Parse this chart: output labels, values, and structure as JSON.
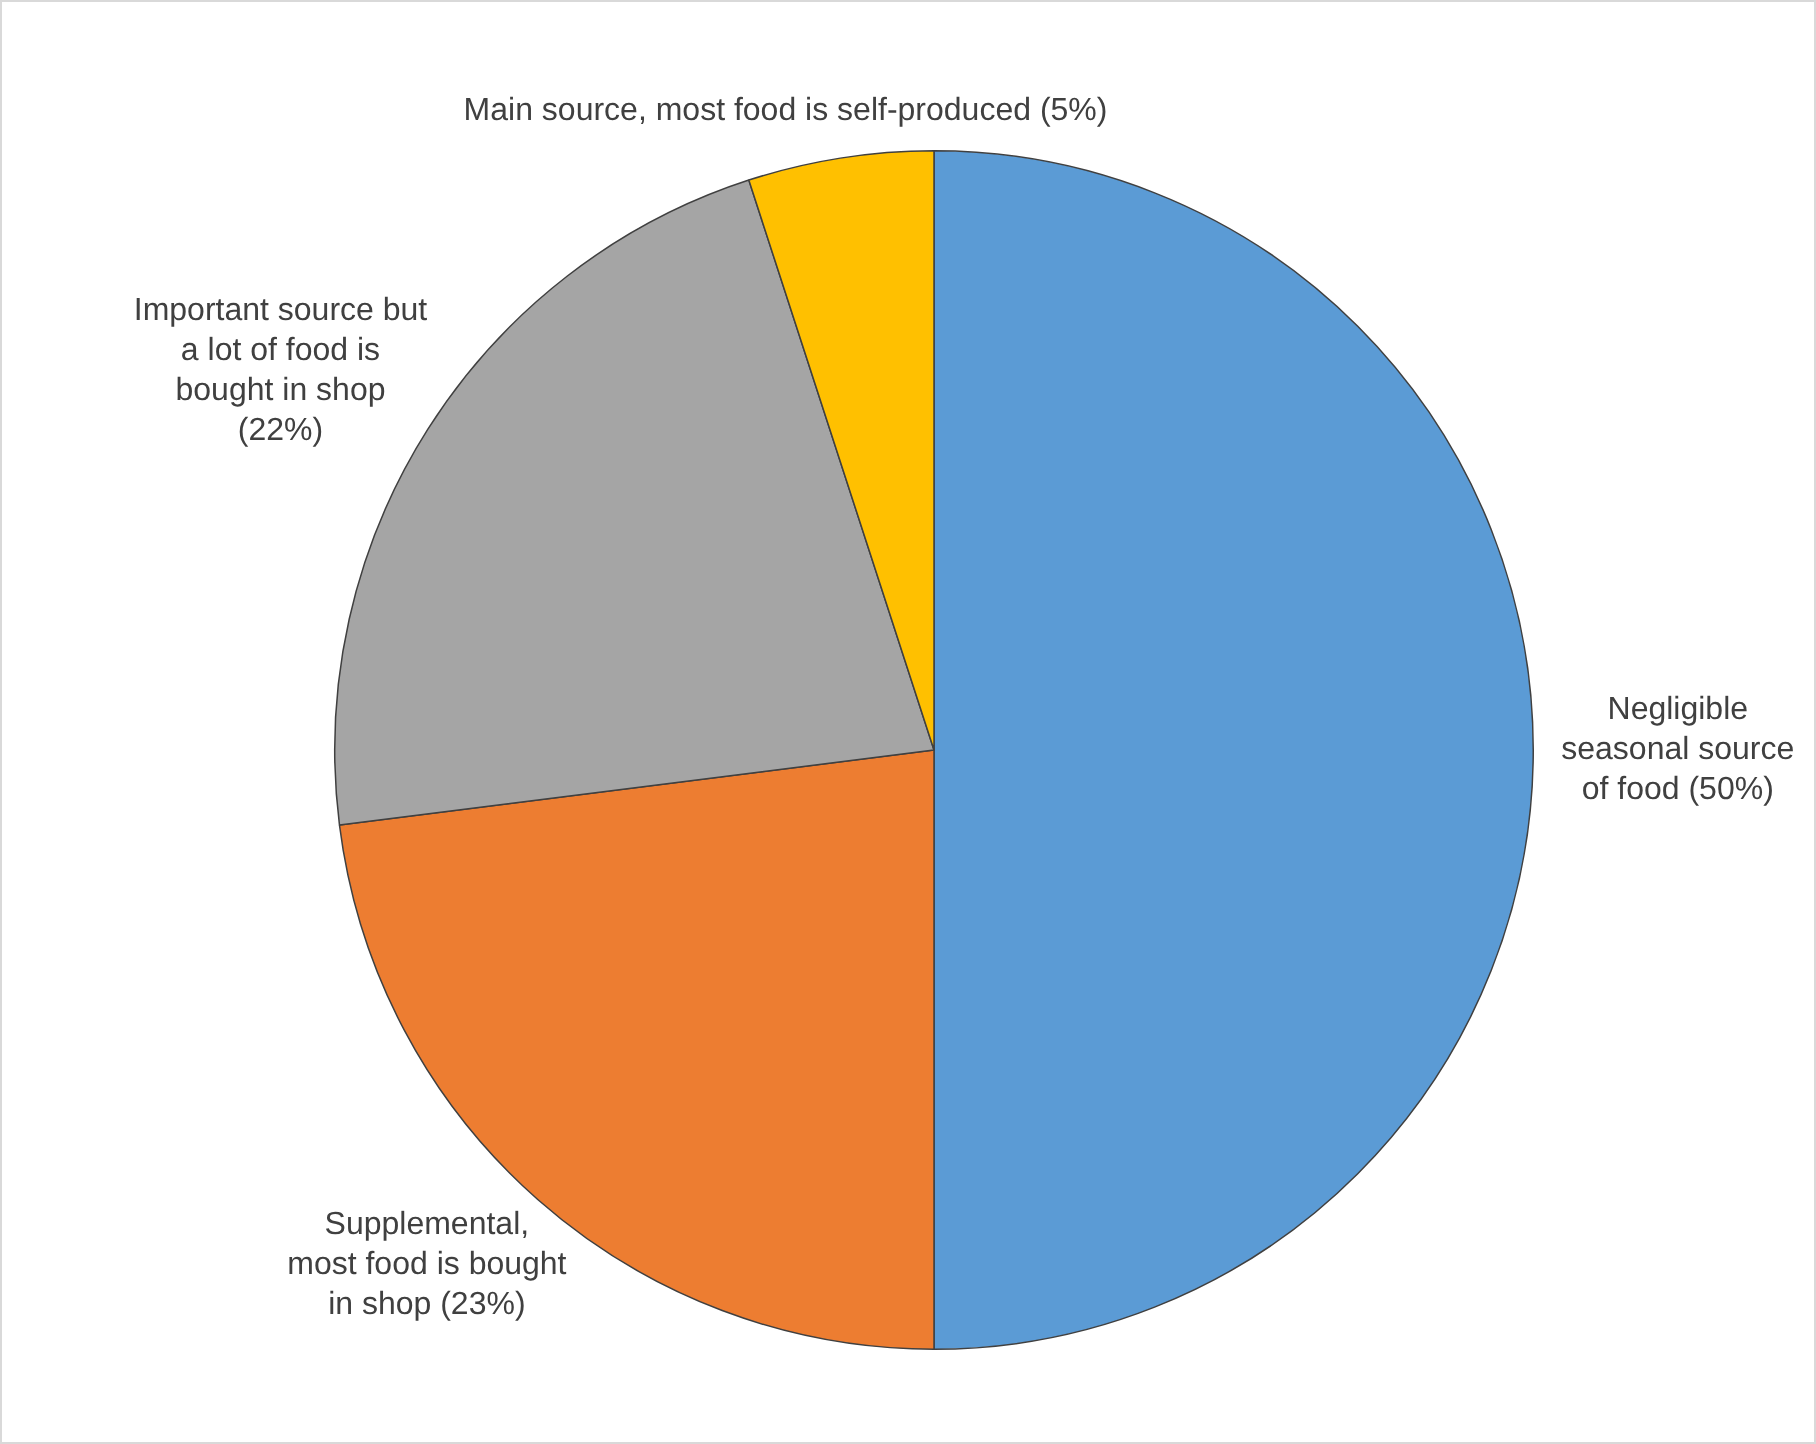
{
  "chart_data": {
    "type": "pie",
    "categories": [
      "Negligible seasonal source of food (50%)",
      "Supplemental, most food is bought in shop (23%)",
      "Important source but a lot of food is bought in shop (22%)",
      "Main source, most food is self-produced (5%)"
    ],
    "values": [
      50,
      23,
      22,
      5
    ],
    "colors": [
      "#5b9bd5",
      "#ed7d31",
      "#a5a5a5",
      "#ffc000"
    ],
    "legend": false
  }
}
